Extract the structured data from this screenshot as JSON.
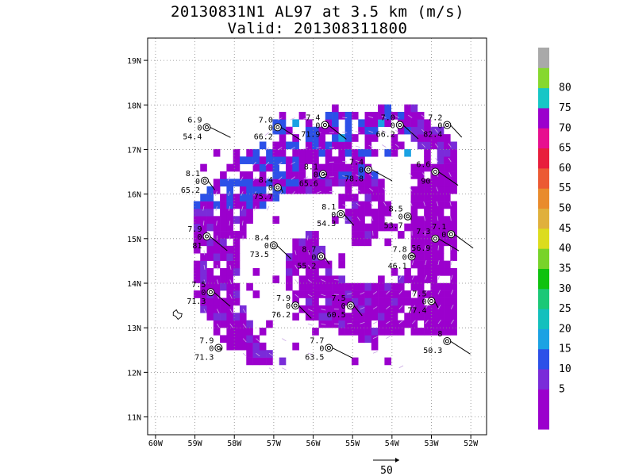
{
  "title_line1": "20130831N1 AL97 at 3.5 km (m/s)",
  "title_line2": "Valid: 201308311800",
  "chart_data": {
    "type": "heatmap",
    "title": "20130831N1 AL97 at 3.5 km (m/s)",
    "subtitle": "Valid: 201308311800",
    "xlim": [
      -60.2,
      -51.6
    ],
    "ylim": [
      10.6,
      19.5
    ],
    "x_ticks": [
      {
        "value": -60,
        "label": "60W"
      },
      {
        "value": -59,
        "label": "59W"
      },
      {
        "value": -58,
        "label": "58W"
      },
      {
        "value": -57,
        "label": "57W"
      },
      {
        "value": -56,
        "label": "56W"
      },
      {
        "value": -55,
        "label": "55W"
      },
      {
        "value": -54,
        "label": "54W"
      },
      {
        "value": -53,
        "label": "53W"
      },
      {
        "value": -52,
        "label": "52W"
      }
    ],
    "y_ticks": [
      {
        "value": 11,
        "label": "11N"
      },
      {
        "value": 12,
        "label": "12N"
      },
      {
        "value": 13,
        "label": "13N"
      },
      {
        "value": 14,
        "label": "14N"
      },
      {
        "value": 15,
        "label": "15N"
      },
      {
        "value": 16,
        "label": "16N"
      },
      {
        "value": 17,
        "label": "17N"
      },
      {
        "value": 18,
        "label": "18N"
      },
      {
        "value": 19,
        "label": "19N"
      }
    ],
    "grid": true,
    "colorbar": {
      "labels": [
        "5",
        "10",
        "15",
        "20",
        "25",
        "30",
        "35",
        "40",
        "45",
        "50",
        "55",
        "60",
        "65",
        "70",
        "75",
        "80"
      ],
      "colors": [
        "#9b00cd",
        "#7a2bd9",
        "#2c50e8",
        "#1ba2e3",
        "#13c0bd",
        "#1bc877",
        "#0fc20f",
        "#78d32a",
        "#a5d823",
        "#dcdc1e",
        "#e0b03c",
        "#e98b2c",
        "#ec5a33",
        "#e81e3c",
        "#e70f8f",
        "#9b00cd",
        "#16c6c6",
        "#86d82e",
        "#a9a9a9"
      ]
    },
    "vector_reference": {
      "label": "50"
    },
    "dropsondes": [
      {
        "lon": -58.7,
        "lat": 17.5,
        "top": "6.9",
        "mid": "0",
        "bottom": "54.4"
      },
      {
        "lon": -56.9,
        "lat": 17.5,
        "top": "7.0",
        "mid": "0",
        "bottom": "66.2"
      },
      {
        "lon": -55.7,
        "lat": 17.55,
        "top": "7.4",
        "mid": "0",
        "bottom": "71.9"
      },
      {
        "lon": -53.8,
        "lat": 17.55,
        "top": "7.0",
        "mid": "0",
        "bottom": "66.2"
      },
      {
        "lon": -52.6,
        "lat": 17.55,
        "top": "7.2",
        "mid": "0",
        "bottom": "82.4"
      },
      {
        "lon": -58.75,
        "lat": 16.3,
        "top": "8.1",
        "mid": "0",
        "bottom": "65.2"
      },
      {
        "lon": -56.9,
        "lat": 16.15,
        "top": "8.4",
        "mid": "0",
        "bottom": "75.7"
      },
      {
        "lon": -55.75,
        "lat": 16.45,
        "top": "8.1",
        "mid": "0",
        "bottom": "65.6"
      },
      {
        "lon": -54.6,
        "lat": 16.55,
        "top": "7.4",
        "mid": "0",
        "bottom": "78.8"
      },
      {
        "lon": -52.9,
        "lat": 16.5,
        "top": "6.6",
        "mid": "",
        "bottom": "90"
      },
      {
        "lon": -58.7,
        "lat": 15.05,
        "top": "7.9",
        "mid": "0",
        "bottom": "81"
      },
      {
        "lon": -57.0,
        "lat": 14.85,
        "top": "8.4",
        "mid": "0",
        "bottom": "73.5"
      },
      {
        "lon": -55.3,
        "lat": 15.55,
        "top": "8.1",
        "mid": "0",
        "bottom": "54.3"
      },
      {
        "lon": -55.8,
        "lat": 14.6,
        "top": "8.7",
        "mid": "0",
        "bottom": "55.2"
      },
      {
        "lon": -53.6,
        "lat": 15.5,
        "top": "8.5",
        "mid": "0",
        "bottom": "53.7"
      },
      {
        "lon": -53.5,
        "lat": 14.6,
        "top": "7.8",
        "mid": "0",
        "bottom": "46.1"
      },
      {
        "lon": -52.9,
        "lat": 15.0,
        "top": "7.3",
        "mid": "",
        "bottom": "56.9"
      },
      {
        "lon": -52.5,
        "lat": 15.1,
        "top": "7.1",
        "mid": "0",
        "bottom": ""
      },
      {
        "lon": -58.6,
        "lat": 13.8,
        "top": "7.5",
        "mid": "0",
        "bottom": "71.3"
      },
      {
        "lon": -56.45,
        "lat": 13.5,
        "top": "7.9",
        "mid": "0",
        "bottom": "76.2"
      },
      {
        "lon": -55.05,
        "lat": 13.5,
        "top": "7.5",
        "mid": "0",
        "bottom": "60.5"
      },
      {
        "lon": -53.0,
        "lat": 13.6,
        "top": "7.5",
        "mid": "0",
        "bottom": "77.4"
      },
      {
        "lon": -58.4,
        "lat": 12.55,
        "top": "7.9",
        "mid": "0",
        "bottom": "71.3"
      },
      {
        "lon": -55.6,
        "lat": 12.55,
        "top": "7.7",
        "mid": "0",
        "bottom": "63.5"
      },
      {
        "lon": -52.6,
        "lat": 12.7,
        "top": "8",
        "mid": "",
        "bottom": "50.3"
      }
    ]
  }
}
